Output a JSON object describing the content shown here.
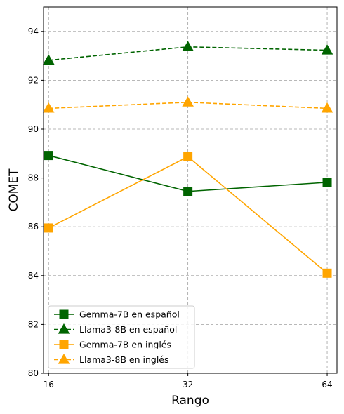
{
  "chart_data": {
    "type": "line",
    "title": "",
    "xlabel": "Rango",
    "ylabel": "COMET",
    "x": [
      16,
      32,
      64
    ],
    "x_tick_labels": [
      "16",
      "32",
      "64"
    ],
    "ylim": [
      80,
      95
    ],
    "y_ticks": [
      80,
      82,
      84,
      86,
      88,
      90,
      92,
      94
    ],
    "grid": true,
    "legend_position": "lower-left",
    "series": [
      {
        "name": "Gemma-7B en español",
        "values": [
          88.92,
          87.45,
          87.82
        ],
        "color": "#006400",
        "marker": "square",
        "dash": "solid"
      },
      {
        "name": "Llama3-8B en español",
        "values": [
          92.82,
          93.37,
          93.23
        ],
        "color": "#006400",
        "marker": "triangle",
        "dash": "dashed"
      },
      {
        "name": "Gemma-7B en inglés",
        "values": [
          85.95,
          88.87,
          84.1
        ],
        "color": "#FFA500",
        "marker": "square",
        "dash": "solid"
      },
      {
        "name": "Llama3-8B en inglés",
        "values": [
          90.85,
          91.1,
          90.85
        ],
        "color": "#FFA500",
        "marker": "triangle",
        "dash": "dashed"
      }
    ]
  }
}
